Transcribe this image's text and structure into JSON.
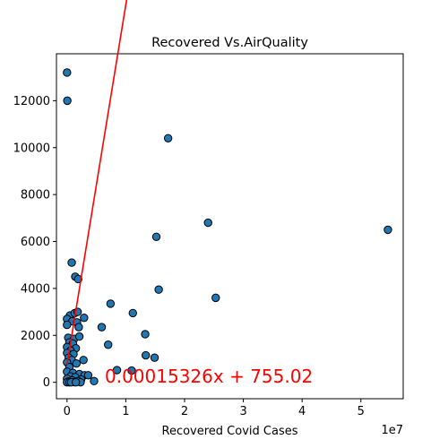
{
  "chart_data": {
    "type": "scatter",
    "title": "Recovered Vs.AirQuality",
    "xlabel": "Recovered Covid Cases",
    "ylabel": "",
    "x_offset_label": "1e7",
    "xlim": [
      -1.8,
      57.2
    ],
    "ylim": [
      -700,
      14000
    ],
    "x_ticks": [
      0,
      1,
      2,
      3,
      4,
      5
    ],
    "x_tick_labels": [
      "0",
      "1",
      "2",
      "3",
      "4",
      "5"
    ],
    "y_ticks": [
      0,
      2000,
      4000,
      6000,
      8000,
      10000,
      12000
    ],
    "y_tick_labels": [
      "0",
      "2000",
      "4000",
      "6000",
      "8000",
      "10000",
      "12000"
    ],
    "grid": false,
    "point_color": "#1f77b4",
    "line_color": "#ff0000",
    "points": [
      [
        0.0,
        13200
      ],
      [
        0.05,
        12000
      ],
      [
        17.2,
        10400
      ],
      [
        24.0,
        6800
      ],
      [
        15.2,
        6200
      ],
      [
        54.6,
        6500
      ],
      [
        0.8,
        5100
      ],
      [
        1.4,
        4500
      ],
      [
        1.9,
        4400
      ],
      [
        15.6,
        3950
      ],
      [
        25.3,
        3600
      ],
      [
        7.4,
        3350
      ],
      [
        11.2,
        2950
      ],
      [
        0.5,
        2850
      ],
      [
        1.3,
        2950
      ],
      [
        1.8,
        3000
      ],
      [
        2.9,
        2750
      ],
      [
        0.0,
        2700
      ],
      [
        0.9,
        2600
      ],
      [
        1.7,
        2550
      ],
      [
        5.9,
        2350
      ],
      [
        0.0,
        2450
      ],
      [
        2.0,
        2350
      ],
      [
        13.3,
        2050
      ],
      [
        0.2,
        1900
      ],
      [
        1.2,
        1850
      ],
      [
        2.1,
        1950
      ],
      [
        0.4,
        1700
      ],
      [
        1.0,
        1650
      ],
      [
        7.0,
        1600
      ],
      [
        0.0,
        1500
      ],
      [
        1.5,
        1450
      ],
      [
        0.6,
        1350
      ],
      [
        0.0,
        1250
      ],
      [
        1.1,
        1200
      ],
      [
        13.4,
        1150
      ],
      [
        14.9,
        1050
      ],
      [
        0.3,
        1050
      ],
      [
        0.8,
        950
      ],
      [
        2.8,
        950
      ],
      [
        0.0,
        850
      ],
      [
        1.6,
        800
      ],
      [
        0.4,
        650
      ],
      [
        8.5,
        520
      ],
      [
        11.0,
        500
      ],
      [
        0.0,
        450
      ],
      [
        1.0,
        400
      ],
      [
        2.1,
        350
      ],
      [
        3.0,
        300
      ],
      [
        3.6,
        300
      ],
      [
        0.6,
        250
      ],
      [
        1.4,
        220
      ],
      [
        0.0,
        150
      ],
      [
        2.4,
        120
      ],
      [
        0.9,
        80
      ],
      [
        1.9,
        50
      ],
      [
        4.6,
        50
      ],
      [
        0.2,
        30
      ],
      [
        1.2,
        10
      ],
      [
        0.0,
        0
      ],
      [
        0.4,
        0
      ],
      [
        2.3,
        0
      ],
      [
        0.7,
        0
      ],
      [
        1.5,
        0
      ]
    ],
    "regression": {
      "slope": 0.00015326,
      "intercept": 755.02,
      "x_range": [
        0,
        54.6
      ],
      "label": "0.00015326x + 755.02"
    }
  }
}
